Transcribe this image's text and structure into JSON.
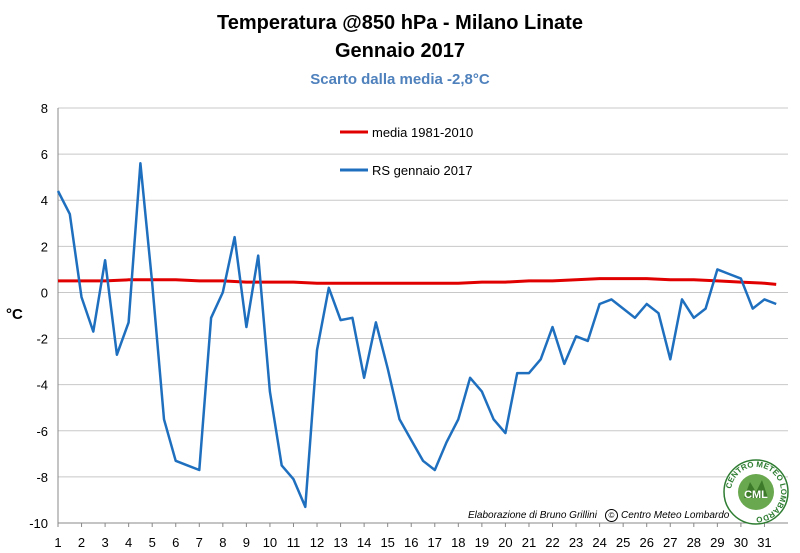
{
  "chart_data": {
    "type": "line",
    "title": "Temperatura @850 hPa - Milano Linate",
    "subtitle": "Gennaio 2017",
    "annotation": "Scarto dalla media -2,8°C",
    "xlabel": "",
    "ylabel": "°C",
    "ylim": [
      -10,
      8
    ],
    "yticks": [
      8,
      6,
      4,
      2,
      0,
      -2,
      -4,
      -6,
      -8,
      -10
    ],
    "xticks": [
      1,
      2,
      3,
      4,
      5,
      6,
      7,
      8,
      9,
      10,
      11,
      12,
      13,
      14,
      15,
      16,
      17,
      18,
      19,
      20,
      21,
      22,
      23,
      24,
      25,
      26,
      27,
      28,
      29,
      30,
      31
    ],
    "xlim": [
      1,
      32
    ],
    "grid": "horizontal",
    "legend_position": "top-center",
    "series": [
      {
        "name": "media 1981-2010",
        "color": "#e00000",
        "x": [
          1,
          2,
          3,
          4,
          5,
          6,
          7,
          8,
          9,
          10,
          11,
          12,
          13,
          14,
          15,
          16,
          17,
          18,
          19,
          20,
          21,
          22,
          23,
          24,
          25,
          26,
          27,
          28,
          29,
          30,
          31,
          31.5
        ],
        "values": [
          0.5,
          0.5,
          0.5,
          0.55,
          0.55,
          0.55,
          0.5,
          0.5,
          0.45,
          0.45,
          0.45,
          0.4,
          0.4,
          0.4,
          0.4,
          0.4,
          0.4,
          0.4,
          0.45,
          0.45,
          0.5,
          0.5,
          0.55,
          0.6,
          0.6,
          0.6,
          0.55,
          0.55,
          0.5,
          0.45,
          0.4,
          0.35
        ]
      },
      {
        "name": "RS gennaio 2017",
        "color": "#1f6fbf",
        "x": [
          1,
          1.5,
          2,
          2.5,
          3,
          3.5,
          4,
          4.5,
          5,
          5.5,
          6,
          6.5,
          7,
          7.5,
          8,
          8.5,
          9,
          9.5,
          10,
          10.5,
          11,
          11.5,
          12,
          12.5,
          13,
          13.5,
          14,
          14.5,
          15,
          15.5,
          16,
          16.5,
          17,
          17.5,
          18,
          18.5,
          19,
          19.5,
          20,
          20.5,
          21,
          21.5,
          22,
          22.5,
          23,
          23.5,
          24,
          24.5,
          25,
          25.5,
          26,
          26.5,
          27,
          27.5,
          28,
          28.5,
          29,
          29.5,
          30,
          30.5,
          31,
          31.5
        ],
        "values": [
          4.4,
          3.4,
          -0.2,
          -1.7,
          1.4,
          -2.7,
          -1.3,
          5.6,
          0.4,
          -5.5,
          -7.3,
          -7.5,
          -7.7,
          -1.1,
          0.0,
          2.4,
          -1.5,
          1.6,
          -4.3,
          -7.5,
          -8.1,
          -9.3,
          -2.5,
          0.2,
          -1.2,
          -1.1,
          -3.7,
          -1.3,
          -3.3,
          -5.5,
          -6.4,
          -7.3,
          -7.7,
          -6.5,
          -5.5,
          -3.7,
          -4.3,
          -5.5,
          -6.1,
          -3.5,
          -3.5,
          -2.9,
          -1.5,
          -3.1,
          -1.9,
          -2.1,
          -0.5,
          -0.3,
          -0.7,
          -1.1,
          -0.5,
          -0.9,
          -2.9,
          -0.3,
          -1.1,
          -0.7,
          1.0,
          0.8,
          0.6,
          -0.7,
          -0.3,
          -0.5
        ]
      }
    ]
  },
  "credit": {
    "author": "Elaborazione di Bruno Grillini",
    "copyright": "©",
    "org": "Centro Meteo Lombardo"
  },
  "logo": {
    "ring_text": "CENTRO METEO LOMBARDO",
    "center_text": "CML"
  }
}
